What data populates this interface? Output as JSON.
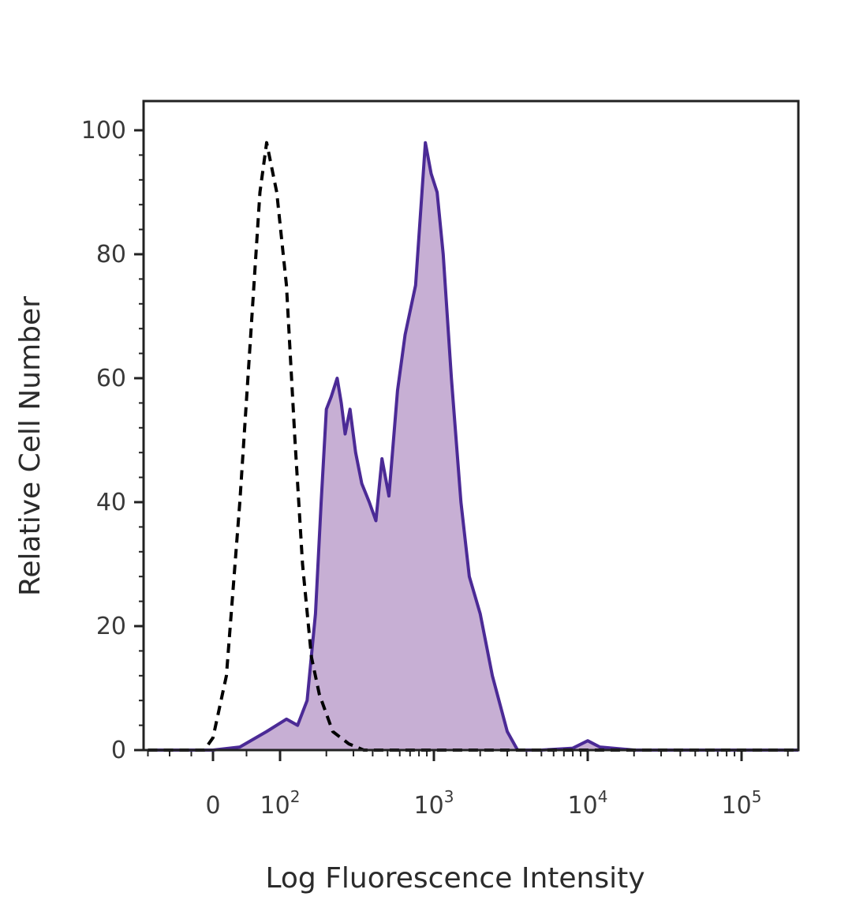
{
  "chart_data": {
    "type": "area",
    "title": "",
    "xlabel": "Log Fluorescence Intensity",
    "ylabel": "Relative Cell Number",
    "x_scale": "biexponential",
    "ylim": [
      0,
      100
    ],
    "yticks": [
      0,
      20,
      40,
      60,
      80,
      100
    ],
    "xticks": [
      {
        "value": 0,
        "label": "0",
        "exp": ""
      },
      {
        "value": 100,
        "label": "10",
        "exp": "2"
      },
      {
        "value": 1000,
        "label": "10",
        "exp": "3"
      },
      {
        "value": 10000,
        "label": "10",
        "exp": "4"
      },
      {
        "value": 100000,
        "label": "10",
        "exp": "5"
      }
    ],
    "grid": false,
    "legend": "none",
    "series": [
      {
        "style": "dashed-line",
        "color": "#000000",
        "points": [
          [
            -150,
            0
          ],
          [
            -80,
            0
          ],
          [
            -20,
            0
          ],
          [
            0,
            2
          ],
          [
            20,
            12
          ],
          [
            40,
            40
          ],
          [
            55,
            65
          ],
          [
            70,
            90
          ],
          [
            80,
            98
          ],
          [
            95,
            90
          ],
          [
            110,
            75
          ],
          [
            125,
            50
          ],
          [
            140,
            30
          ],
          [
            160,
            15
          ],
          [
            180,
            9
          ],
          [
            220,
            3
          ],
          [
            280,
            1
          ],
          [
            350,
            0
          ],
          [
            600,
            0
          ],
          [
            2000,
            0
          ],
          [
            10000,
            0
          ],
          [
            300000,
            0
          ]
        ]
      },
      {
        "style": "filled-area",
        "color": "#4b2a96",
        "fill": "#c7afd4",
        "points": [
          [
            -150,
            0
          ],
          [
            -50,
            0
          ],
          [
            0,
            0
          ],
          [
            40,
            0.5
          ],
          [
            80,
            3
          ],
          [
            110,
            5
          ],
          [
            130,
            4
          ],
          [
            150,
            8
          ],
          [
            170,
            22
          ],
          [
            185,
            40
          ],
          [
            200,
            55
          ],
          [
            215,
            57
          ],
          [
            235,
            60
          ],
          [
            250,
            56
          ],
          [
            265,
            51
          ],
          [
            285,
            55
          ],
          [
            310,
            48
          ],
          [
            340,
            43
          ],
          [
            380,
            40
          ],
          [
            420,
            37
          ],
          [
            460,
            47
          ],
          [
            510,
            41
          ],
          [
            580,
            58
          ],
          [
            650,
            67
          ],
          [
            760,
            75
          ],
          [
            880,
            98
          ],
          [
            960,
            93
          ],
          [
            1050,
            90
          ],
          [
            1150,
            80
          ],
          [
            1300,
            60
          ],
          [
            1500,
            40
          ],
          [
            1700,
            28
          ],
          [
            2000,
            22
          ],
          [
            2400,
            12
          ],
          [
            3000,
            3
          ],
          [
            3500,
            0
          ],
          [
            5000,
            0
          ],
          [
            8000,
            0.3
          ],
          [
            10000,
            1.5
          ],
          [
            12000,
            0.5
          ],
          [
            20000,
            0
          ],
          [
            100000,
            0
          ],
          [
            300000,
            0
          ]
        ]
      }
    ]
  }
}
